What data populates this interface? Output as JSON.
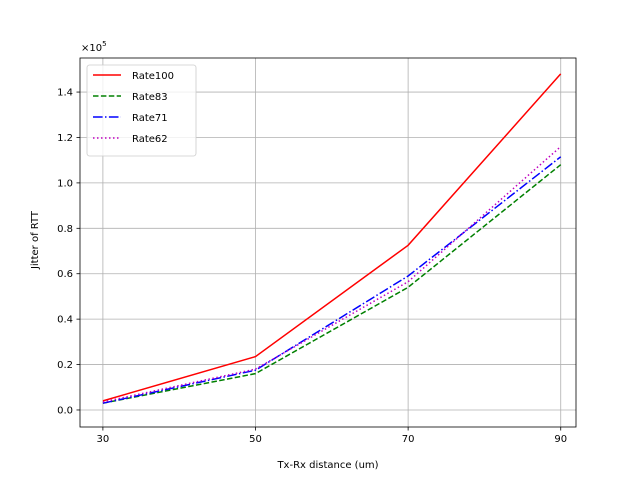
{
  "chart_data": {
    "type": "line",
    "title": "",
    "xlabel": "Tx-Rx distance (um)",
    "ylabel": "Jitter of RTT",
    "y_multiplier_label": "×10",
    "y_multiplier_exponent": "5",
    "x": [
      30,
      50,
      70,
      90
    ],
    "x_tick_labels": [
      "30",
      "50",
      "70",
      "90"
    ],
    "y_ticks": [
      0.0,
      0.2,
      0.4,
      0.6,
      0.8,
      1.0,
      1.2,
      1.4
    ],
    "y_tick_labels": [
      "0.0",
      "0.2",
      "0.4",
      "0.6",
      "0.8",
      "1.0",
      "1.2",
      "1.4"
    ],
    "xlim": [
      27,
      92
    ],
    "ylim": [
      -0.075,
      1.55
    ],
    "grid": true,
    "legend_position": "upper-left",
    "series": [
      {
        "name": "Rate100",
        "color": "#ff0000",
        "dash": "solid",
        "values": [
          0.04,
          0.235,
          0.725,
          1.48
        ]
      },
      {
        "name": "Rate83",
        "color": "#008000",
        "dash": "dashed",
        "values": [
          0.03,
          0.16,
          0.54,
          1.08
        ]
      },
      {
        "name": "Rate71",
        "color": "#0000ff",
        "dash": "dashdot",
        "values": [
          0.03,
          0.175,
          0.59,
          1.115
        ]
      },
      {
        "name": "Rate62",
        "color": "#bf00bf",
        "dash": "dotted",
        "values": [
          0.035,
          0.18,
          0.565,
          1.16
        ]
      }
    ]
  }
}
